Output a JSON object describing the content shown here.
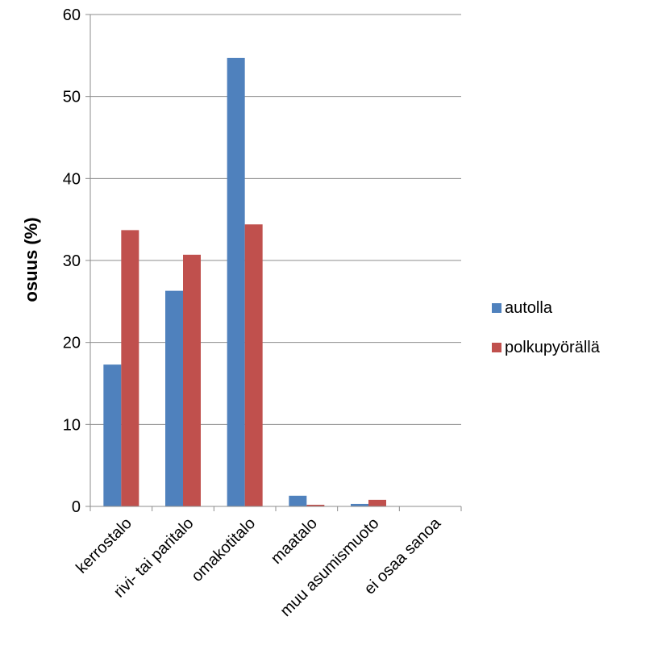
{
  "chart_data": {
    "type": "bar",
    "title": "",
    "xlabel": "",
    "ylabel": "osuus (%)",
    "ylim": [
      0,
      60
    ],
    "yticks": [
      0,
      10,
      20,
      30,
      40,
      50,
      60
    ],
    "grid": true,
    "legend_position": "right",
    "categories": [
      "kerrostalo",
      "rivi- tai paritalo",
      "omakotitalo",
      "maatalo",
      "muu asumismuoto",
      "ei osaa sanoa"
    ],
    "series": [
      {
        "name": "autolla",
        "color": "#4F81BD",
        "values": [
          17.3,
          26.3,
          54.7,
          1.3,
          0.3,
          0
        ]
      },
      {
        "name": "polkupyörällä",
        "color": "#C0504D",
        "values": [
          33.7,
          30.7,
          34.4,
          0.2,
          0.8,
          0
        ]
      }
    ]
  }
}
